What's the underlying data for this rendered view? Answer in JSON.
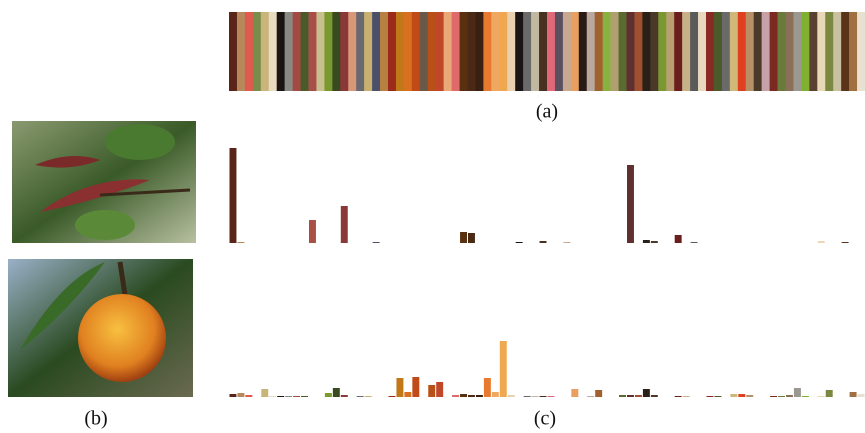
{
  "palette": {
    "label": "(a)",
    "colors": [
      "#5a2418",
      "#b5895c",
      "#e05a50",
      "#7a8c4a",
      "#c9b47a",
      "#e8dcc0",
      "#1a1412",
      "#8a8a84",
      "#a44a42",
      "#4a5a2a",
      "#a85048",
      "#c9c090",
      "#7a9a30",
      "#3a4a20",
      "#8a3838",
      "#d89878",
      "#6a6870",
      "#c8b070",
      "#4a5068",
      "#b88040",
      "#9a2a1a",
      "#c07818",
      "#d87020",
      "#c04a18",
      "#6a5848",
      "#b85018",
      "#c04828",
      "#e8a878",
      "#e06a6a",
      "#5a3010",
      "#4a2a14",
      "#3a2010",
      "#e87a30",
      "#f0a860",
      "#f0a850",
      "#e8d0b0",
      "#1a1414",
      "#6a6a6a",
      "#c0b8a0",
      "#4a3020",
      "#e06878",
      "#5a5060",
      "#c8a890",
      "#e8a060",
      "#2a1a14",
      "#b8a8a0",
      "#a06030",
      "#8ab040",
      "#b0a070",
      "#5a6a30",
      "#603030",
      "#a05030",
      "#2a2018",
      "#4a3828",
      "#7a9830",
      "#b8a070",
      "#6a1e1e",
      "#c8b088",
      "#5a5a58",
      "#e8d8c0",
      "#8a2a24",
      "#4a5a2a",
      "#6a6a68",
      "#d0b878",
      "#e04020",
      "#b89068",
      "#4a3a2a",
      "#c8a0a8",
      "#7a2a20",
      "#6a7a3a",
      "#8a7058",
      "#9a9890",
      "#80b030",
      "#5a4030",
      "#e8d8b8",
      "#7a8840",
      "#c8c0a0",
      "#5a3418",
      "#a07040",
      "#e8e0d0"
    ]
  },
  "images": {
    "label": "(b)"
  },
  "histograms": {
    "label": "(c)",
    "series": [
      {
        "values": [
          0.95,
          0.01,
          0,
          0,
          0,
          0,
          0,
          0,
          0,
          0,
          0.23,
          0,
          0,
          0,
          0.37,
          0,
          0,
          0,
          0.01,
          0,
          0,
          0,
          0,
          0,
          0,
          0,
          0,
          0,
          0,
          0.11,
          0.1,
          0,
          0,
          0,
          0,
          0,
          0.01,
          0,
          0,
          0.02,
          0,
          0,
          0.01,
          0,
          0,
          0,
          0,
          0,
          0,
          0,
          0.78,
          0,
          0.03,
          0.02,
          0,
          0,
          0.08,
          0,
          0.01,
          0,
          0,
          0,
          0,
          0,
          0,
          0,
          0,
          0,
          0,
          0,
          0,
          0,
          0,
          0,
          0.02,
          0,
          0,
          0.01,
          0,
          0
        ]
      },
      {
        "values": [
          0.03,
          0.04,
          0.02,
          0,
          0.08,
          0.01,
          0.01,
          0.01,
          0.01,
          0.01,
          0,
          0,
          0.04,
          0.09,
          0.02,
          0,
          0.01,
          0.01,
          0,
          0,
          0.01,
          0.19,
          0.05,
          0.2,
          0,
          0.12,
          0.15,
          0,
          0.02,
          0.03,
          0.02,
          0.02,
          0.19,
          0.05,
          0.56,
          0.02,
          0,
          0.01,
          0.01,
          0.01,
          0.01,
          0,
          0,
          0.08,
          0,
          0.01,
          0.07,
          0,
          0,
          0.02,
          0.02,
          0.02,
          0.08,
          0.02,
          0,
          0,
          0.01,
          0.01,
          0,
          0,
          0.01,
          0.01,
          0,
          0.03,
          0.03,
          0.02,
          0,
          0,
          0.01,
          0.01,
          0.02,
          0.09,
          0.01,
          0,
          0.01,
          0.07,
          0,
          0,
          0.05,
          0.03
        ]
      }
    ]
  }
}
